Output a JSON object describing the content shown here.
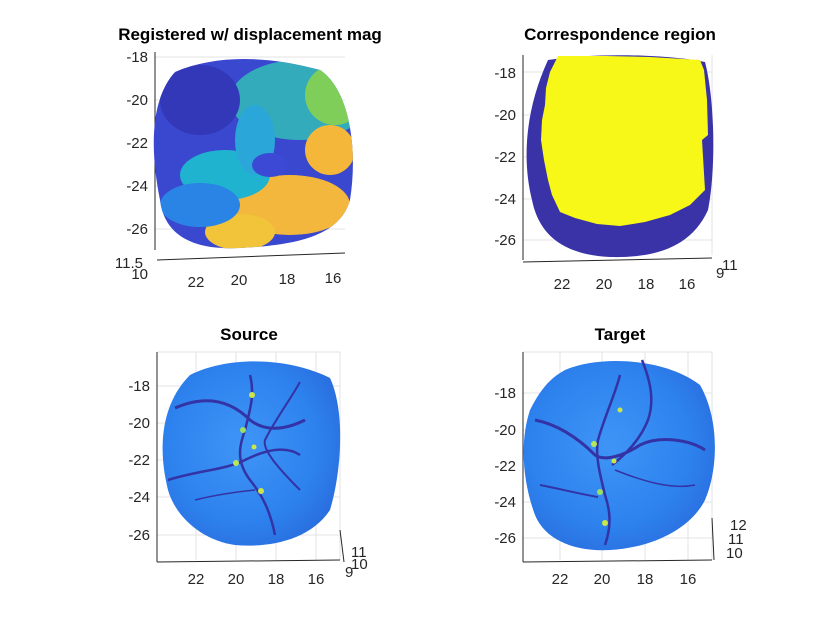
{
  "chart_data": [
    {
      "type": "surface",
      "title": "Registered w/ displacement mag",
      "y_ticks": [
        "-18",
        "-20",
        "-22",
        "-24",
        "-26"
      ],
      "x_ticks": [
        "22",
        "20",
        "18",
        "16"
      ],
      "z_ticks": [
        "11.5",
        "10"
      ],
      "colormap": "parula",
      "colors": {
        "low": "#3a3fc9",
        "mid": "#22b8c8",
        "high": "#f6c333",
        "peak": "#e9d82c"
      }
    },
    {
      "type": "surface",
      "title": "Correspondence region",
      "y_ticks": [
        "-18",
        "-20",
        "-22",
        "-24",
        "-26"
      ],
      "x_ticks": [
        "22",
        "20",
        "18",
        "16"
      ],
      "z_ticks": [
        "11",
        "9"
      ],
      "colormap": "binary",
      "colors": {
        "inside": "#f7f718",
        "outside": "#3a33a8"
      }
    },
    {
      "type": "surface",
      "title": "Source",
      "y_ticks": [
        "-18",
        "-20",
        "-22",
        "-24",
        "-26"
      ],
      "x_ticks": [
        "22",
        "20",
        "18",
        "16"
      ],
      "z_ticks": [
        "11",
        "10",
        "9"
      ],
      "colormap": "parula",
      "colors": {
        "base": "#2f86f0",
        "groove": "#3433a5",
        "spot": "#c9e64a"
      }
    },
    {
      "type": "surface",
      "title": "Target",
      "y_ticks": [
        "-18",
        "-20",
        "-22",
        "-24",
        "-26"
      ],
      "x_ticks": [
        "22",
        "20",
        "18",
        "16"
      ],
      "z_ticks": [
        "12",
        "11",
        "10"
      ],
      "colormap": "parula",
      "colors": {
        "base": "#2f86f0",
        "groove": "#3433a5",
        "spot": "#c9e64a"
      }
    }
  ]
}
